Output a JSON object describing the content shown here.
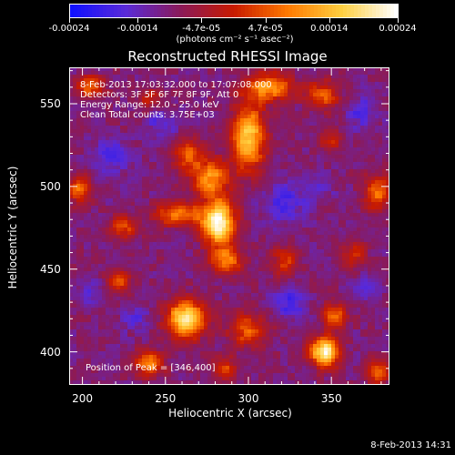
{
  "colorbar": {
    "tick_labels": [
      "-0.00024",
      "-0.00014",
      "-4.7e-05",
      "4.7e-05",
      "0.00014",
      "0.00024"
    ],
    "tick_values": [
      -0.00024,
      -0.00014,
      -4.7e-05,
      4.7e-05,
      0.00014,
      0.00024
    ],
    "range": [
      -0.00024,
      0.00024
    ],
    "units": "(photons cm⁻² s⁻¹ asec⁻²)",
    "colors": [
      "#1010ff",
      "#5a2ad8",
      "#8a1a5a",
      "#c81a00",
      "#ff7a00",
      "#ffd040",
      "#ffffff"
    ]
  },
  "title": "Reconstructed RHESSI Image",
  "info_lines": [
    "8-Feb-2013 17:03:32.000 to 17:07:08.000",
    "Detectors: 3F 5F 6F 7F 8F 9F, Att 0",
    "Energy Range: 12.0 - 25.0 keV",
    "Clean    Total counts: 3.75E+03"
  ],
  "peak_label": "Position of Peak = [346,400]",
  "footer": "8-Feb-2013 14:31",
  "chart_data": {
    "type": "heatmap",
    "title": "Reconstructed RHESSI Image",
    "xlabel": "Heliocentric X (arcsec)",
    "ylabel": "Heliocentric Y (arcsec)",
    "xlim": [
      192,
      385
    ],
    "ylim": [
      380,
      572
    ],
    "xticks": [
      200,
      250,
      300,
      350
    ],
    "yticks": [
      400,
      450,
      500,
      550
    ],
    "xtick_labels": [
      "200",
      "250",
      "300",
      "350"
    ],
    "ytick_labels": [
      "400",
      "450",
      "500",
      "550"
    ],
    "peak_position": [
      346,
      400
    ],
    "sources": [
      {
        "x": 282,
        "y": 478,
        "sx": 7,
        "sy": 9,
        "amp": 1.0
      },
      {
        "x": 277,
        "y": 505,
        "sx": 8,
        "sy": 8,
        "amp": 0.6
      },
      {
        "x": 287,
        "y": 455,
        "sx": 7,
        "sy": 6,
        "amp": 0.55
      },
      {
        "x": 300,
        "y": 530,
        "sx": 7,
        "sy": 14,
        "amp": 0.75
      },
      {
        "x": 312,
        "y": 560,
        "sx": 10,
        "sy": 6,
        "amp": 0.6
      },
      {
        "x": 263,
        "y": 520,
        "sx": 6,
        "sy": 6,
        "amp": 0.45
      },
      {
        "x": 258,
        "y": 483,
        "sx": 10,
        "sy": 5,
        "amp": 0.5
      },
      {
        "x": 225,
        "y": 475,
        "sx": 6,
        "sy": 5,
        "amp": 0.4
      },
      {
        "x": 345,
        "y": 555,
        "sx": 7,
        "sy": 6,
        "amp": 0.45
      },
      {
        "x": 350,
        "y": 528,
        "sx": 5,
        "sy": 5,
        "amp": 0.3
      },
      {
        "x": 198,
        "y": 498,
        "sx": 5,
        "sy": 6,
        "amp": 0.45
      },
      {
        "x": 378,
        "y": 496,
        "sx": 6,
        "sy": 7,
        "amp": 0.5
      },
      {
        "x": 262,
        "y": 420,
        "sx": 8,
        "sy": 8,
        "amp": 0.85
      },
      {
        "x": 346,
        "y": 400,
        "sx": 6,
        "sy": 6,
        "amp": 0.95
      },
      {
        "x": 352,
        "y": 422,
        "sx": 5,
        "sy": 5,
        "amp": 0.5
      },
      {
        "x": 378,
        "y": 388,
        "sx": 5,
        "sy": 5,
        "amp": 0.45
      },
      {
        "x": 240,
        "y": 393,
        "sx": 6,
        "sy": 5,
        "amp": 0.55
      },
      {
        "x": 222,
        "y": 443,
        "sx": 5,
        "sy": 5,
        "amp": 0.45
      },
      {
        "x": 300,
        "y": 413,
        "sx": 8,
        "sy": 7,
        "amp": 0.45
      },
      {
        "x": 322,
        "y": 455,
        "sx": 6,
        "sy": 6,
        "amp": 0.35
      },
      {
        "x": 205,
        "y": 560,
        "sx": 6,
        "sy": 5,
        "amp": 0.45
      },
      {
        "x": 240,
        "y": 553,
        "sx": 5,
        "sy": 5,
        "amp": 0.3
      },
      {
        "x": 364,
        "y": 458,
        "sx": 5,
        "sy": 6,
        "amp": 0.3
      },
      {
        "x": 286,
        "y": 390,
        "sx": 5,
        "sy": 5,
        "amp": 0.35
      }
    ],
    "negatives": [
      {
        "x": 218,
        "y": 518,
        "sx": 8,
        "sy": 7,
        "amp": 0.55
      },
      {
        "x": 322,
        "y": 490,
        "sx": 9,
        "sy": 9,
        "amp": 0.55
      },
      {
        "x": 248,
        "y": 538,
        "sx": 7,
        "sy": 6,
        "amp": 0.45
      },
      {
        "x": 325,
        "y": 430,
        "sx": 7,
        "sy": 7,
        "amp": 0.55
      },
      {
        "x": 368,
        "y": 545,
        "sx": 7,
        "sy": 7,
        "amp": 0.5
      },
      {
        "x": 232,
        "y": 420,
        "sx": 6,
        "sy": 5,
        "amp": 0.45
      },
      {
        "x": 205,
        "y": 435,
        "sx": 6,
        "sy": 5,
        "amp": 0.4
      },
      {
        "x": 372,
        "y": 440,
        "sx": 6,
        "sy": 6,
        "amp": 0.4
      },
      {
        "x": 342,
        "y": 500,
        "sx": 6,
        "sy": 6,
        "amp": 0.35
      }
    ]
  }
}
